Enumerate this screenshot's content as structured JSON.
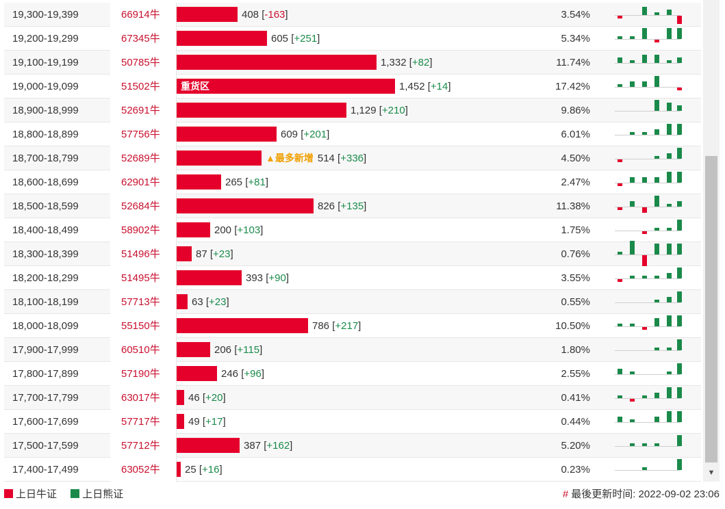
{
  "colors": {
    "bull": "#e4002b",
    "bear": "#1a8a4a",
    "code_text": "#c8102e",
    "flag": "#f0a000"
  },
  "rows": [
    {
      "range": "19,300-19,399",
      "code": "66914牛",
      "volume": "408",
      "change": "-163",
      "change_dir": "neg",
      "bar_fraction": 0.165,
      "percent": "3.54%",
      "spark": [
        0,
        -1,
        0,
        3,
        1,
        2,
        -3
      ]
    },
    {
      "range": "19,200-19,299",
      "code": "67345牛",
      "volume": "605",
      "change": "+251",
      "change_dir": "pos",
      "bar_fraction": 0.245,
      "percent": "5.34%",
      "spark": [
        0,
        1,
        1,
        4,
        -1,
        4,
        4
      ]
    },
    {
      "range": "19,100-19,199",
      "code": "50785牛",
      "volume": "1,332",
      "change": "+82",
      "change_dir": "pos",
      "bar_fraction": 0.54,
      "percent": "11.74%",
      "spark": [
        0,
        2,
        1,
        3,
        3,
        1,
        2
      ]
    },
    {
      "range": "19,000-19,099",
      "code": "51502牛",
      "volume": "1,452",
      "change": "+14",
      "change_dir": "pos",
      "bar_fraction": 0.59,
      "bar_label": "重货区",
      "percent": "17.42%",
      "spark": [
        0,
        1,
        2,
        2,
        4,
        0,
        -1
      ]
    },
    {
      "range": "18,900-18,999",
      "code": "52691牛",
      "volume": "1,129",
      "change": "+210",
      "change_dir": "pos",
      "bar_fraction": 0.46,
      "percent": "9.86%",
      "spark": [
        0,
        0,
        0,
        0,
        4,
        3,
        2
      ]
    },
    {
      "range": "18,800-18,899",
      "code": "57756牛",
      "volume": "609",
      "change": "+201",
      "change_dir": "pos",
      "bar_fraction": 0.27,
      "percent": "6.01%",
      "spark": [
        0,
        0,
        1,
        1,
        2,
        4,
        4
      ]
    },
    {
      "range": "18,700-18,799",
      "code": "52689牛",
      "volume": "514",
      "change": "+336",
      "change_dir": "pos",
      "bar_fraction": 0.23,
      "flag": "▲最多新增",
      "percent": "4.50%",
      "spark": [
        0,
        -1,
        0,
        0,
        1,
        2,
        4
      ]
    },
    {
      "range": "18,600-18,699",
      "code": "62901牛",
      "volume": "265",
      "change": "+81",
      "change_dir": "pos",
      "bar_fraction": 0.12,
      "percent": "2.47%",
      "spark": [
        0,
        -1,
        2,
        2,
        2,
        4,
        4
      ]
    },
    {
      "range": "18,500-18,599",
      "code": "52684牛",
      "volume": "826",
      "change": "+135",
      "change_dir": "pos",
      "bar_fraction": 0.37,
      "percent": "11.38%",
      "spark": [
        0,
        -1,
        2,
        -2,
        4,
        1,
        2
      ]
    },
    {
      "range": "18,400-18,499",
      "code": "58902牛",
      "volume": "200",
      "change": "+103",
      "change_dir": "pos",
      "bar_fraction": 0.09,
      "percent": "1.75%",
      "spark": [
        0,
        0,
        0,
        -1,
        1,
        1,
        4
      ]
    },
    {
      "range": "18,300-18,399",
      "code": "51496牛",
      "volume": "87",
      "change": "+23",
      "change_dir": "pos",
      "bar_fraction": 0.04,
      "percent": "0.76%",
      "spark": [
        0,
        1,
        5,
        -4,
        4,
        4,
        4
      ]
    },
    {
      "range": "18,200-18,299",
      "code": "51495牛",
      "volume": "393",
      "change": "+90",
      "change_dir": "pos",
      "bar_fraction": 0.175,
      "percent": "3.55%",
      "spark": [
        0,
        -1,
        1,
        1,
        1,
        2,
        4
      ]
    },
    {
      "range": "18,100-18,199",
      "code": "57713牛",
      "volume": "63",
      "change": "+23",
      "change_dir": "pos",
      "bar_fraction": 0.03,
      "percent": "0.55%",
      "spark": [
        0,
        0,
        0,
        0,
        1,
        2,
        4
      ]
    },
    {
      "range": "18,000-18,099",
      "code": "55150牛",
      "volume": "786",
      "change": "+217",
      "change_dir": "pos",
      "bar_fraction": 0.355,
      "percent": "10.50%",
      "spark": [
        0,
        1,
        1,
        -1,
        3,
        4,
        4
      ]
    },
    {
      "range": "17,900-17,999",
      "code": "60510牛",
      "volume": "206",
      "change": "+115",
      "change_dir": "pos",
      "bar_fraction": 0.09,
      "percent": "1.80%",
      "spark": [
        0,
        0,
        0,
        0,
        1,
        1,
        4
      ]
    },
    {
      "range": "17,800-17,899",
      "code": "57190牛",
      "volume": "246",
      "change": "+96",
      "change_dir": "pos",
      "bar_fraction": 0.11,
      "percent": "2.55%",
      "spark": [
        0,
        2,
        1,
        0,
        0,
        1,
        4
      ]
    },
    {
      "range": "17,700-17,799",
      "code": "63017牛",
      "volume": "46",
      "change": "+20",
      "change_dir": "pos",
      "bar_fraction": 0.02,
      "percent": "0.41%",
      "spark": [
        0,
        1,
        -1,
        1,
        2,
        4,
        4
      ]
    },
    {
      "range": "17,600-17,699",
      "code": "57717牛",
      "volume": "49",
      "change": "+17",
      "change_dir": "pos",
      "bar_fraction": 0.02,
      "percent": "0.44%",
      "spark": [
        0,
        2,
        1,
        0,
        2,
        4,
        4
      ]
    },
    {
      "range": "17,500-17,599",
      "code": "57712牛",
      "volume": "387",
      "change": "+162",
      "change_dir": "pos",
      "bar_fraction": 0.17,
      "percent": "5.20%",
      "spark": [
        0,
        0,
        1,
        1,
        1,
        0,
        4
      ]
    },
    {
      "range": "17,400-17,499",
      "code": "63052牛",
      "volume": "25",
      "change": "+16",
      "change_dir": "pos",
      "bar_fraction": 0.011,
      "percent": "0.23%",
      "spark": [
        0,
        0,
        0,
        1,
        0,
        0,
        4
      ]
    }
  ],
  "legend": {
    "bull": "上日牛证",
    "bear": "上日熊证"
  },
  "footer": {
    "hash": "#",
    "updated": "最後更新时间: 2022-09-02 23:06"
  },
  "scrollbar": {
    "down_arrow": "▼"
  }
}
